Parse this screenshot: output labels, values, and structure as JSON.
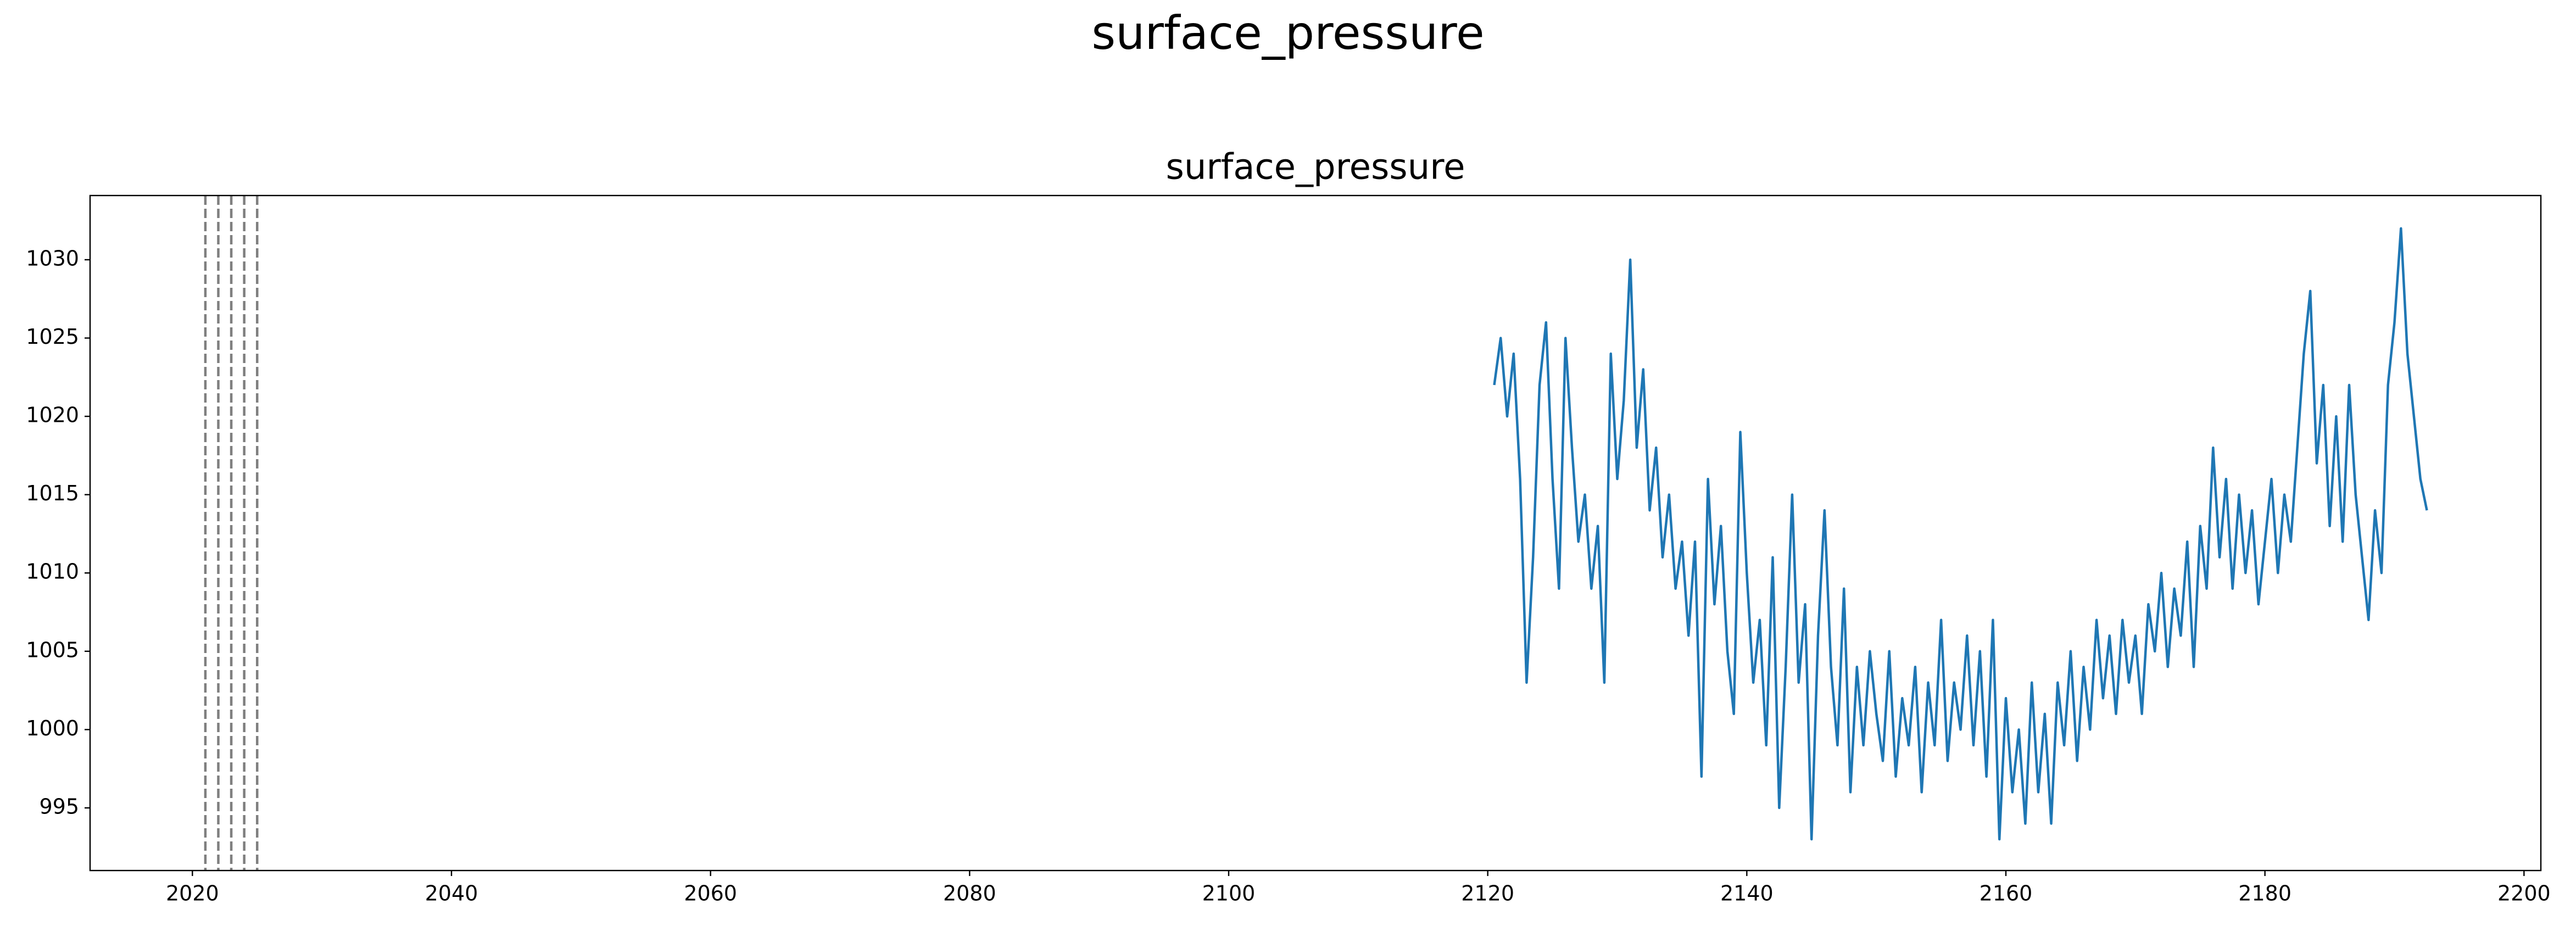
{
  "chart_data": {
    "type": "line",
    "suptitle": "surface_pressure",
    "title": "surface_pressure",
    "x": [
      2120.5,
      2121,
      2121.5,
      2122,
      2122.5,
      2123,
      2123.5,
      2124,
      2124.5,
      2125,
      2125.5,
      2126,
      2126.5,
      2127,
      2127.5,
      2128,
      2128.5,
      2129,
      2129.5,
      2130,
      2130.5,
      2131,
      2131.5,
      2132,
      2132.5,
      2133,
      2133.5,
      2134,
      2134.5,
      2135,
      2135.5,
      2136,
      2136.5,
      2137,
      2137.5,
      2138,
      2138.5,
      2139,
      2139.5,
      2140,
      2140.5,
      2141,
      2141.5,
      2142,
      2142.5,
      2143,
      2143.5,
      2144,
      2144.5,
      2145,
      2145.5,
      2146,
      2146.5,
      2147,
      2147.5,
      2148,
      2148.5,
      2149,
      2149.5,
      2150,
      2150.5,
      2151,
      2151.5,
      2152,
      2152.5,
      2153,
      2153.5,
      2154,
      2154.5,
      2155,
      2155.5,
      2156,
      2156.5,
      2157,
      2157.5,
      2158,
      2158.5,
      2159,
      2159.5,
      2160,
      2160.5,
      2161,
      2161.5,
      2162,
      2162.5,
      2163,
      2163.5,
      2164,
      2164.5,
      2165,
      2165.5,
      2166,
      2166.5,
      2167,
      2167.5,
      2168,
      2168.5,
      2169,
      2169.5,
      2170,
      2170.5,
      2171,
      2171.5,
      2172,
      2172.5,
      2173,
      2173.5,
      2174,
      2174.5,
      2175,
      2175.5,
      2176,
      2176.5,
      2177,
      2177.5,
      2178,
      2178.5,
      2179,
      2179.5,
      2180,
      2180.5,
      2181,
      2181.5,
      2182,
      2182.5,
      2183,
      2183.5,
      2184,
      2184.5,
      2185,
      2185.5,
      2186,
      2186.5,
      2187,
      2187.5,
      2188,
      2188.5,
      2189,
      2189.5,
      2190,
      2190.5,
      2191,
      2191.5,
      2192,
      2192.5
    ],
    "series": [
      {
        "name": "surface_pressure",
        "color": "#1f77b4",
        "values": [
          1022,
          1025,
          1020,
          1024,
          1016,
          1003,
          1011,
          1022,
          1026,
          1016,
          1009,
          1025,
          1018,
          1012,
          1015,
          1009,
          1013,
          1003,
          1024,
          1016,
          1021,
          1030,
          1018,
          1023,
          1014,
          1018,
          1011,
          1015,
          1009,
          1012,
          1006,
          1012,
          997,
          1016,
          1008,
          1013,
          1005,
          1001,
          1019,
          1010,
          1003,
          1007,
          999,
          1011,
          995,
          1004,
          1015,
          1003,
          1008,
          993,
          1006,
          1014,
          1004,
          999,
          1009,
          996,
          1004,
          999,
          1005,
          1001,
          998,
          1005,
          997,
          1002,
          999,
          1004,
          996,
          1003,
          999,
          1007,
          998,
          1003,
          1000,
          1006,
          999,
          1005,
          997,
          1007,
          993,
          1002,
          996,
          1000,
          994,
          1003,
          996,
          1001,
          994,
          1003,
          999,
          1005,
          998,
          1004,
          1000,
          1007,
          1002,
          1006,
          1001,
          1007,
          1003,
          1006,
          1001,
          1008,
          1005,
          1010,
          1004,
          1009,
          1006,
          1012,
          1004,
          1013,
          1009,
          1018,
          1011,
          1016,
          1009,
          1015,
          1010,
          1014,
          1008,
          1012,
          1016,
          1010,
          1015,
          1012,
          1018,
          1024,
          1028,
          1017,
          1022,
          1013,
          1020,
          1012,
          1022,
          1015,
          1011,
          1007,
          1014,
          1010,
          1022,
          1026,
          1032,
          1024,
          1020,
          1016,
          1014
        ]
      }
    ],
    "vlines": [
      2021,
      2022,
      2023,
      2024,
      2025
    ],
    "vline_color": "#7f7f7f",
    "vline_style": "dashed",
    "xlim": [
      2012.1,
      2201.3
    ],
    "xticks": [
      2020,
      2040,
      2060,
      2080,
      2100,
      2120,
      2140,
      2160,
      2180,
      2200
    ],
    "ylim": [
      991.0,
      1034.1
    ],
    "yticks": [
      995,
      1000,
      1005,
      1010,
      1015,
      1020,
      1025,
      1030
    ],
    "grid": false
  }
}
